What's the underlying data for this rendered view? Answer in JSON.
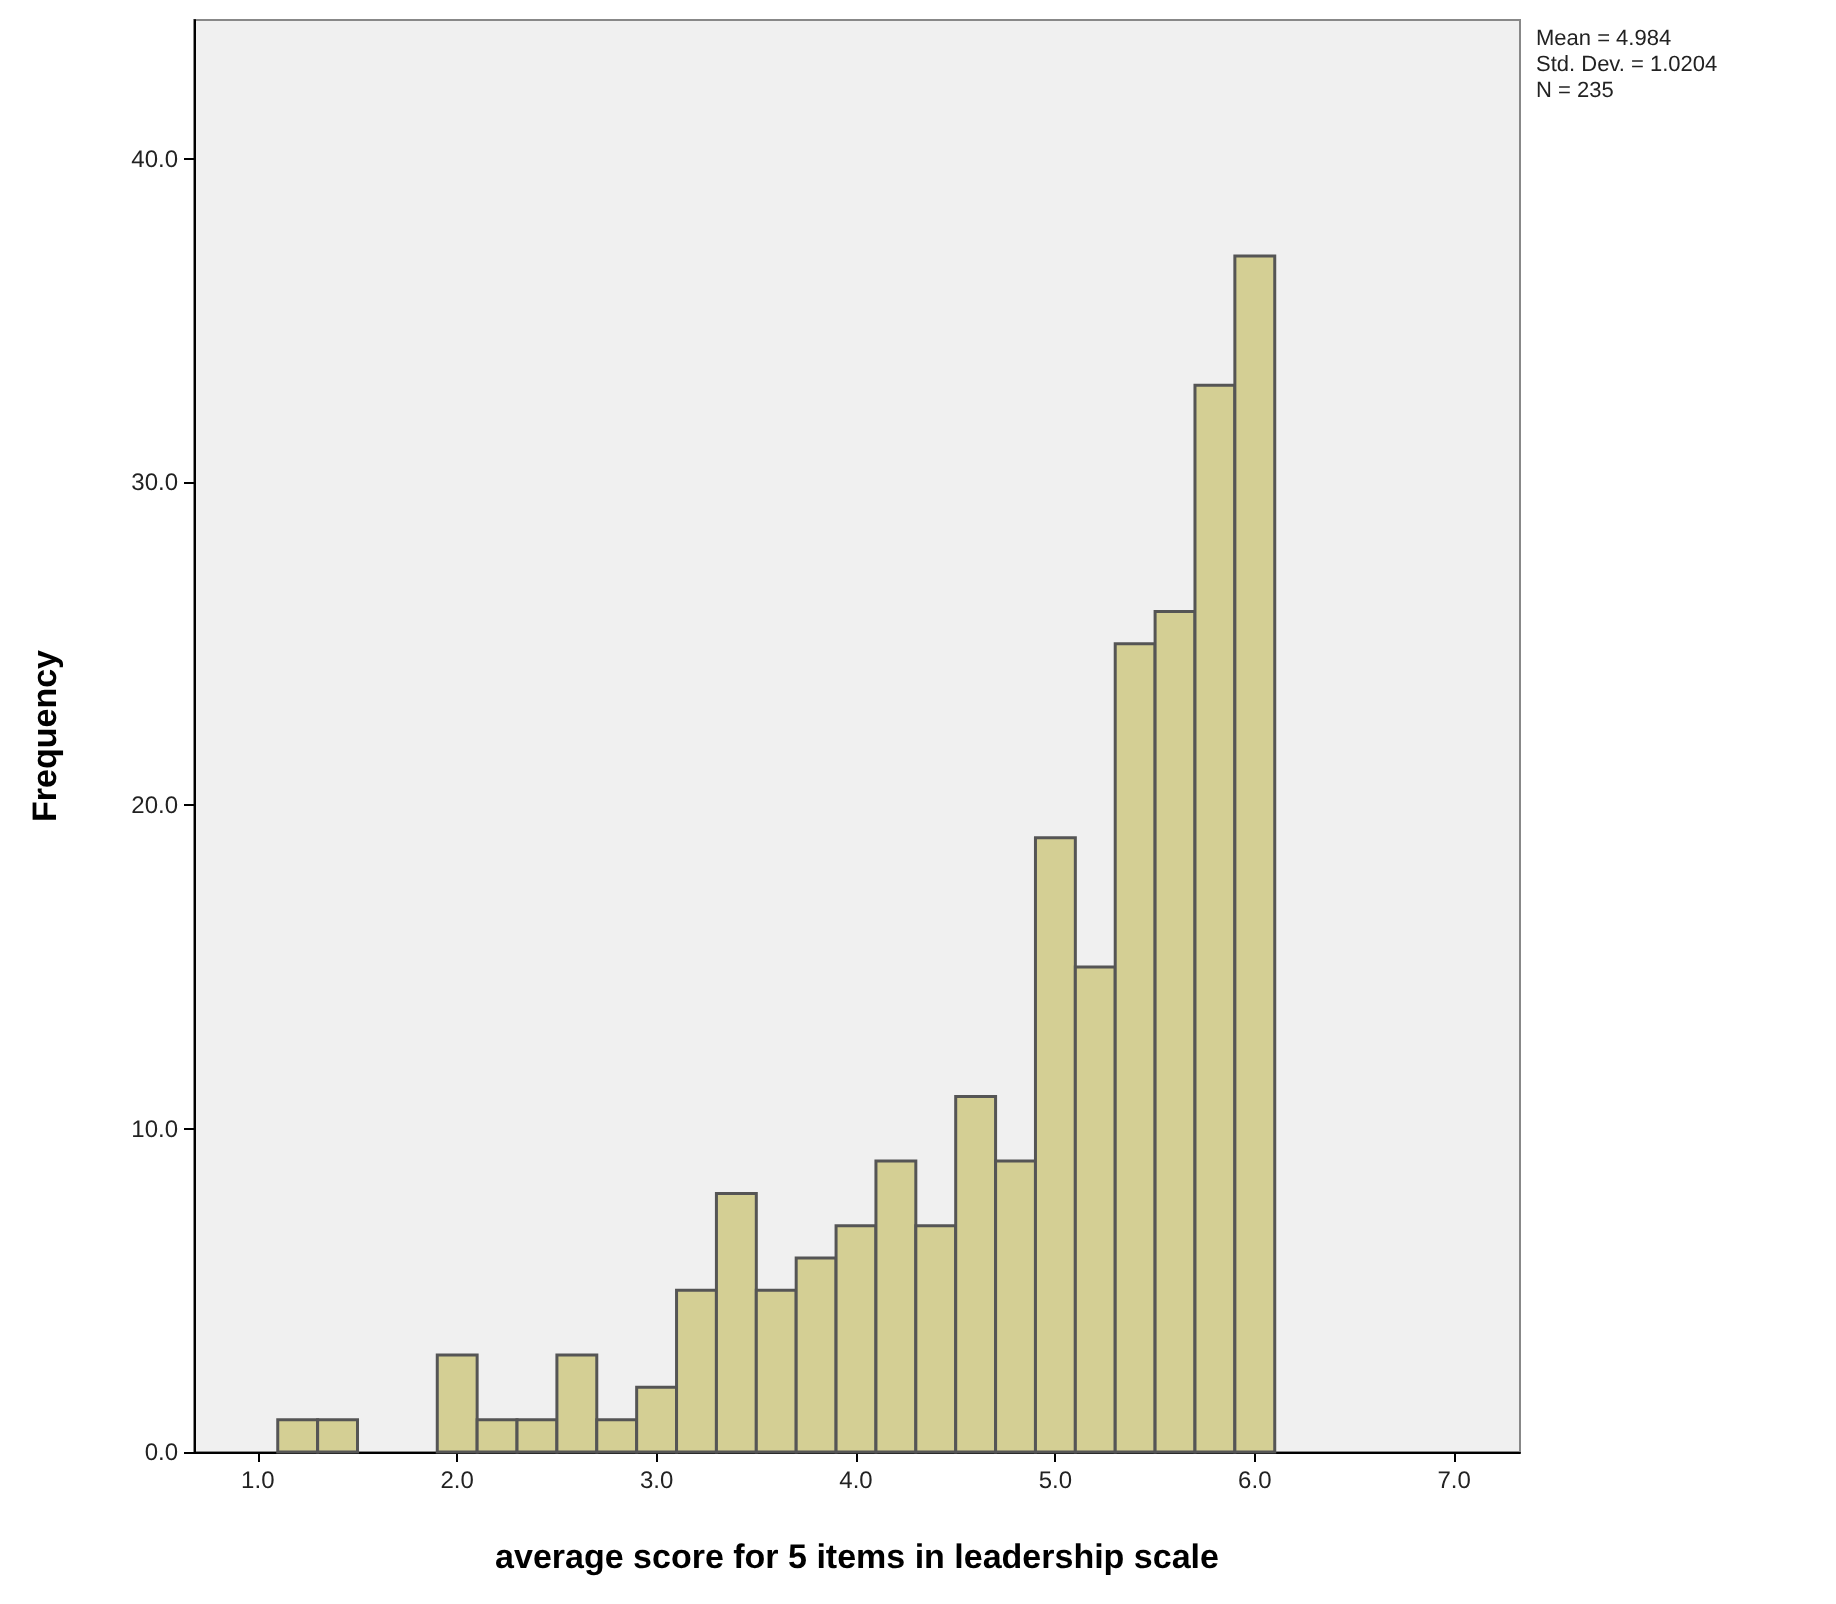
{
  "chart_data": {
    "type": "histogram",
    "xlabel": "average score for 5 items in leadership scale",
    "ylabel": "Frequency",
    "bins": [
      1.1,
      1.3,
      1.5,
      1.7,
      1.9,
      2.1,
      2.3,
      2.5,
      2.7,
      2.9,
      3.1,
      3.3,
      3.5,
      3.7,
      3.9,
      4.1,
      4.3,
      4.5,
      4.7,
      4.9,
      5.1,
      5.3,
      5.5,
      5.7,
      5.9,
      6.1
    ],
    "values": [
      1,
      1,
      0,
      0,
      3,
      1,
      1,
      3,
      1,
      2,
      5,
      8,
      5,
      6,
      7,
      9,
      7,
      11,
      9,
      19,
      15,
      25,
      26,
      33,
      37
    ],
    "color": "#d4cf94",
    "xlim": [
      0.68,
      7.33
    ],
    "xticks": [
      {
        "value": 1,
        "label": "1.0"
      },
      {
        "value": 2,
        "label": "2.0"
      },
      {
        "value": 3,
        "label": "3.0"
      },
      {
        "value": 4,
        "label": "4.0"
      },
      {
        "value": 5,
        "label": "5.0"
      },
      {
        "value": 6,
        "label": "6.0"
      },
      {
        "value": 7,
        "label": "7.0"
      }
    ],
    "ylim": [
      0,
      44.3
    ],
    "yticks": [
      {
        "value": 0,
        "label": "0.0"
      },
      {
        "value": 10,
        "label": "10.0"
      },
      {
        "value": 20,
        "label": "20.0"
      },
      {
        "value": 30,
        "label": "30.0"
      },
      {
        "value": 40,
        "label": "40.0"
      }
    ],
    "annotations": [
      "Mean = 4.984",
      "Std. Dev. = 1.0204",
      "N = 235"
    ],
    "grid": false
  }
}
